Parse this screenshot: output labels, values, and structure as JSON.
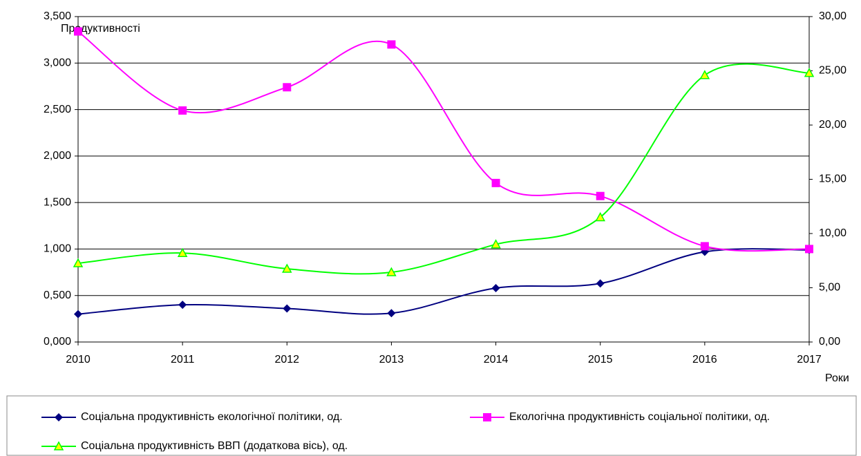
{
  "chart_data": {
    "type": "line",
    "y_label": "Продуктивності",
    "x_label": "Роки",
    "categories": [
      "2010",
      "2011",
      "2012",
      "2013",
      "2014",
      "2015",
      "2016",
      "2017"
    ],
    "series": [
      {
        "name": "Соціальна продуктивність екологічної політики, од.",
        "color": "#000080",
        "marker": "diamond",
        "values": [
          0.3,
          0.4,
          0.36,
          0.31,
          0.58,
          0.63,
          0.97,
          0.99
        ]
      },
      {
        "name": "Екологічна продуктивність соціальної політики, од.",
        "color": "#ff00ff",
        "marker": "square",
        "values": [
          3.34,
          2.49,
          2.74,
          3.2,
          1.71,
          1.57,
          1.03,
          1.0
        ]
      },
      {
        "name": "Соціальна продуктивність ВВП (додаткова вісь), од.",
        "color": "#00ff00",
        "marker": "triangle",
        "axis": "y2",
        "values": [
          7.26,
          8.2,
          6.75,
          6.43,
          9.0,
          11.5,
          24.6,
          24.8
        ]
      }
    ],
    "ylim": [
      0,
      3.5
    ],
    "yticks": [
      {
        "value": 0,
        "label": "0,000"
      },
      {
        "value": 0.5,
        "label": "0,500"
      },
      {
        "value": 1,
        "label": "1,000"
      },
      {
        "value": 1.5,
        "label": "1,500"
      },
      {
        "value": 2,
        "label": "2,000"
      },
      {
        "value": 2.5,
        "label": "2,500"
      },
      {
        "value": 3,
        "label": "3,000"
      },
      {
        "value": 3.5,
        "label": "3,500"
      }
    ],
    "y2lim": [
      0,
      30
    ],
    "y2ticks": [
      {
        "value": 0,
        "label": "0,00"
      },
      {
        "value": 5,
        "label": "5,00"
      },
      {
        "value": 10,
        "label": "10,00"
      },
      {
        "value": 15,
        "label": "15,00"
      },
      {
        "value": 20,
        "label": "20,00"
      },
      {
        "value": 25,
        "label": "25,00"
      },
      {
        "value": 30,
        "label": "30,00"
      }
    ],
    "grid": true,
    "legend": "bottom",
    "smooth": true
  }
}
